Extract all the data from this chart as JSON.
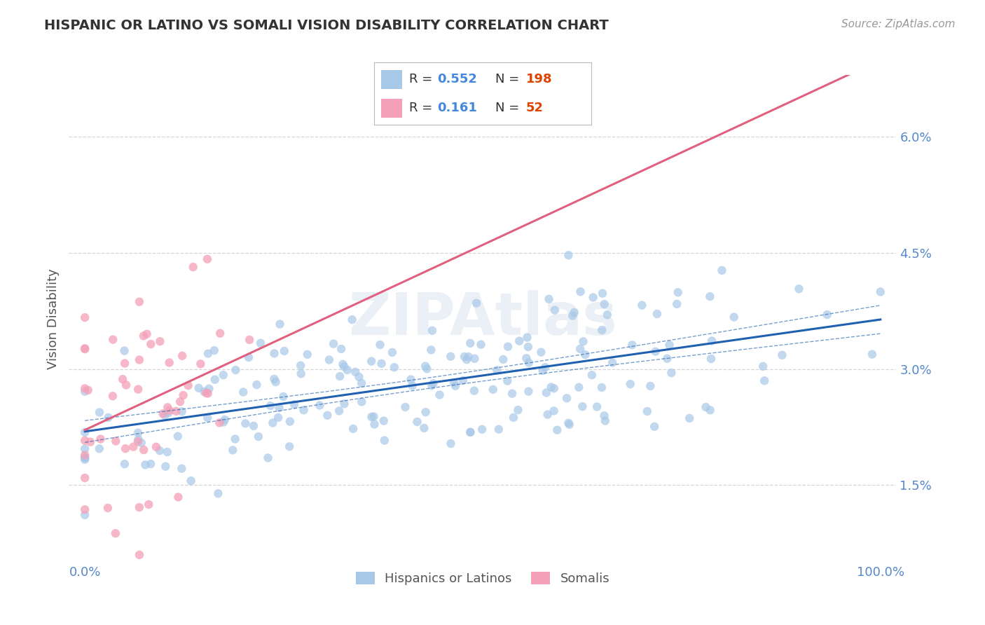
{
  "title": "HISPANIC OR LATINO VS SOMALI VISION DISABILITY CORRELATION CHART",
  "source": "Source: ZipAtlas.com",
  "ylabel": "Vision Disability",
  "watermark": "ZIPAtlas",
  "legend_labels": [
    "Hispanics or Latinos",
    "Somalis"
  ],
  "blue_R": 0.552,
  "blue_N": 198,
  "pink_R": 0.161,
  "pink_N": 52,
  "blue_color": "#a8c8e8",
  "pink_color": "#f4a0b8",
  "blue_line_color": "#2060b0",
  "pink_line_color": "#e06080",
  "legend_R_color": "#4488dd",
  "legend_N_color": "#dd4400",
  "xlim": [
    -0.02,
    1.02
  ],
  "ylim": [
    0.005,
    0.068
  ],
  "yticks": [
    0.015,
    0.03,
    0.045,
    0.06
  ],
  "ytick_labels": [
    "1.5%",
    "3.0%",
    "4.5%",
    "6.0%"
  ],
  "background_color": "#ffffff",
  "grid_color": "#cccccc",
  "tick_color": "#5588cc",
  "title_color": "#333333",
  "source_color": "#999999",
  "ylabel_color": "#555555"
}
